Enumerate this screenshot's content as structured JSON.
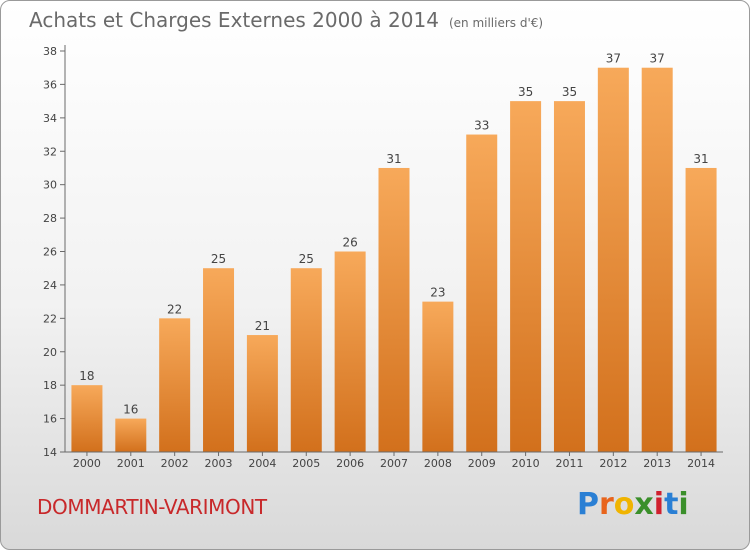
{
  "header": {
    "title": "Achats et Charges Externes 2000 à 2014",
    "unit": "(en milliers d'€)"
  },
  "commune": "DOMMARTIN-VARIMONT",
  "logo": {
    "text": "Proxiti",
    "letters": [
      "P",
      "r",
      "o",
      "x",
      "i",
      "t",
      "i"
    ],
    "colors": [
      "#2a7fd4",
      "#e8641c",
      "#f0b400",
      "#3a8f2a",
      "#d0202e",
      "#2a7fd4",
      "#3a8f2a"
    ]
  },
  "colors": {
    "bar_light": "#f7a95a",
    "bar_dark": "#d2701c",
    "title": "#6a6a6a",
    "commune": "#c8282a"
  },
  "chart_data": {
    "type": "bar",
    "title": "Achats et Charges Externes 2000 à 2014",
    "subtitle": "(en milliers d'€)",
    "categories": [
      "2000",
      "2001",
      "2002",
      "2003",
      "2004",
      "2005",
      "2006",
      "2007",
      "2008",
      "2009",
      "2010",
      "2011",
      "2012",
      "2013",
      "2014"
    ],
    "values": [
      18,
      16,
      22,
      25,
      21,
      25,
      26,
      31,
      23,
      33,
      35,
      35,
      37,
      37,
      31
    ],
    "ylim": [
      14,
      38
    ],
    "yticks": [
      14,
      16,
      18,
      20,
      22,
      24,
      26,
      28,
      30,
      32,
      34,
      36,
      38
    ],
    "grid": false,
    "legend": "none"
  }
}
